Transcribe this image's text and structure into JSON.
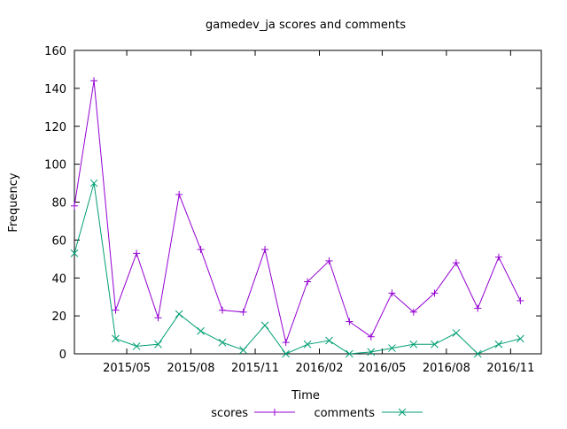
{
  "chart_data": {
    "type": "line",
    "title": "gamedev_ja scores and comments",
    "xlabel": "Time",
    "ylabel": "Frequency",
    "ylim": [
      0,
      160
    ],
    "yticks": [
      "0",
      "20",
      "40",
      "60",
      "80",
      "100",
      "120",
      "140",
      "160"
    ],
    "xlim": [
      "2015-02-15",
      "2016-12-15"
    ],
    "xticks": [
      {
        "label": "2015/05",
        "date": "2015-05-01"
      },
      {
        "label": "2015/08",
        "date": "2015-08-01"
      },
      {
        "label": "2015/11",
        "date": "2015-11-01"
      },
      {
        "label": "2016/02",
        "date": "2016-02-01"
      },
      {
        "label": "2016/05",
        "date": "2016-05-01"
      },
      {
        "label": "2016/08",
        "date": "2016-08-01"
      },
      {
        "label": "2016/11",
        "date": "2016-11-01"
      }
    ],
    "legend_position": "bottom",
    "grid": false,
    "x": [
      "2015-02-15",
      "2015-03-15",
      "2015-04-15",
      "2015-05-15",
      "2015-06-15",
      "2015-07-15",
      "2015-08-15",
      "2015-09-15",
      "2015-10-15",
      "2015-11-15",
      "2015-12-15",
      "2016-01-15",
      "2016-02-15",
      "2016-03-15",
      "2016-04-15",
      "2016-05-15",
      "2016-06-15",
      "2016-07-15",
      "2016-08-15",
      "2016-09-15",
      "2016-10-15",
      "2016-11-15"
    ],
    "series": [
      {
        "name": "scores",
        "color": "#9400d3",
        "marker": "plus",
        "values": [
          78,
          144,
          23,
          53,
          19,
          84,
          55,
          23,
          22,
          55,
          6,
          38,
          49,
          17,
          9,
          32,
          22,
          32,
          48,
          24,
          51,
          28
        ]
      },
      {
        "name": "comments",
        "color": "#009e73",
        "marker": "cross",
        "values": [
          53,
          90,
          8,
          4,
          5,
          21,
          12,
          6,
          2,
          15,
          0,
          5,
          7,
          0,
          1,
          3,
          5,
          5,
          11,
          0,
          5,
          8
        ]
      }
    ]
  }
}
